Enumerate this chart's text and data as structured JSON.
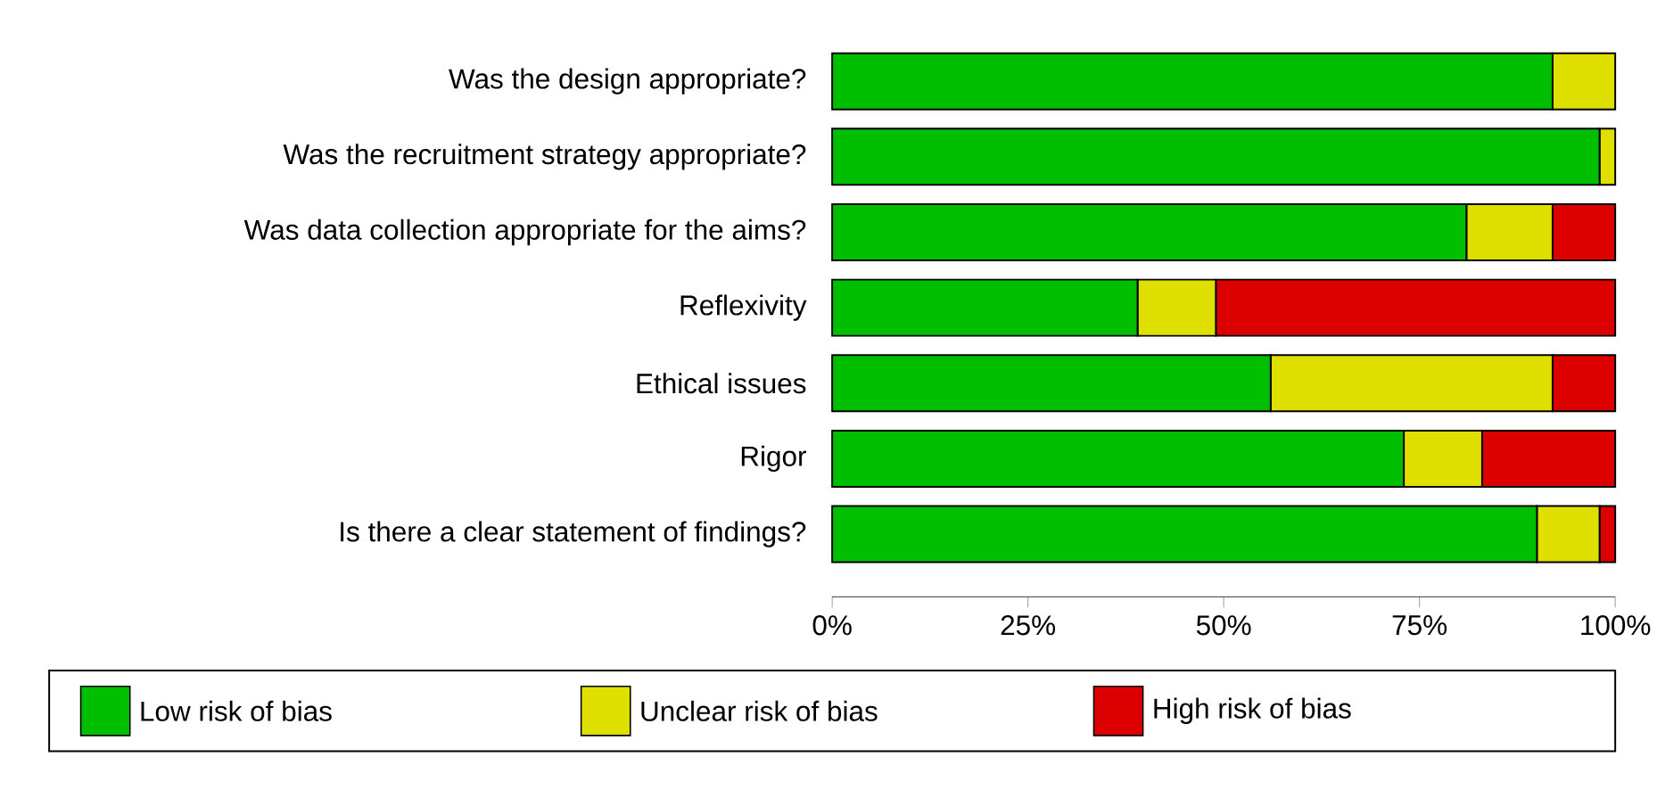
{
  "chart_data": {
    "type": "bar",
    "orientation": "horizontal",
    "stacked": true,
    "legend": "bottom",
    "categories": [
      "Was the design appropriate?",
      "Was the recruitment strategy appropriate?",
      "Was data collection appropriate for the aims?",
      "Reflexivity",
      "Ethical issues",
      "Rigor",
      "Is there a clear statement of findings?"
    ],
    "xlim": [
      0,
      100
    ],
    "xticks": [
      {
        "value": 0,
        "label": "0%"
      },
      {
        "value": 25,
        "label": "25%"
      },
      {
        "value": 50,
        "label": "50%"
      },
      {
        "value": 75,
        "label": "75%"
      },
      {
        "value": 100,
        "label": "100%"
      }
    ],
    "series": [
      {
        "name": "Low risk of bias",
        "color": "#00bf00",
        "values": [
          92,
          98,
          81,
          39,
          56,
          73,
          90
        ]
      },
      {
        "name": "Unclear risk of bias",
        "color": "#e0e000",
        "values": [
          8,
          2,
          11,
          10,
          36,
          10,
          8
        ]
      },
      {
        "name": "High risk of bias",
        "color": "#dd0000",
        "values": [
          null,
          null,
          8,
          51,
          8,
          17,
          2
        ]
      }
    ]
  }
}
